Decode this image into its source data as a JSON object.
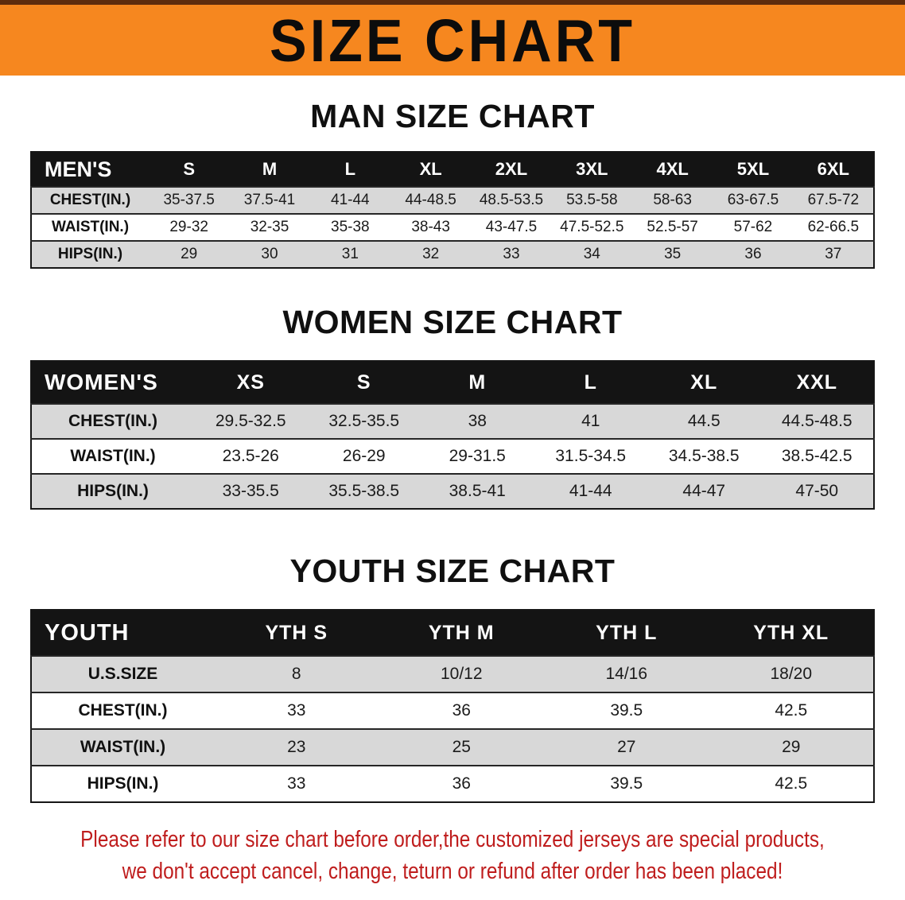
{
  "banner": {
    "title": "SIZE CHART"
  },
  "colors": {
    "banner_bg": "#f6871f",
    "banner_top_line": "#5e2c0d",
    "header_bg": "#141414",
    "header_text": "#ffffff",
    "stripe": "#d8d8d8",
    "footer_text": "#bf1d1d"
  },
  "sections": [
    {
      "heading": "MAN SIZE CHART",
      "table": {
        "header": [
          "MEN'S",
          "S",
          "M",
          "L",
          "XL",
          "2XL",
          "3XL",
          "4XL",
          "5XL",
          "6XL"
        ],
        "rows": [
          {
            "label": "CHEST(IN.)",
            "values": [
              "35-37.5",
              "37.5-41",
              "41-44",
              "44-48.5",
              "48.5-53.5",
              "53.5-58",
              "58-63",
              "63-67.5",
              "67.5-72"
            ]
          },
          {
            "label": "WAIST(IN.)",
            "values": [
              "29-32",
              "32-35",
              "35-38",
              "38-43",
              "43-47.5",
              "47.5-52.5",
              "52.5-57",
              "57-62",
              "62-66.5"
            ]
          },
          {
            "label": "HIPS(IN.)",
            "values": [
              "29",
              "30",
              "31",
              "32",
              "33",
              "34",
              "35",
              "36",
              "37"
            ]
          }
        ]
      }
    },
    {
      "heading": "WOMEN SIZE CHART",
      "table": {
        "header": [
          "WOMEN'S",
          "XS",
          "S",
          "M",
          "L",
          "XL",
          "XXL"
        ],
        "rows": [
          {
            "label": "CHEST(IN.)",
            "values": [
              "29.5-32.5",
              "32.5-35.5",
              "38",
              "41",
              "44.5",
              "44.5-48.5"
            ]
          },
          {
            "label": "WAIST(IN.)",
            "values": [
              "23.5-26",
              "26-29",
              "29-31.5",
              "31.5-34.5",
              "34.5-38.5",
              "38.5-42.5"
            ]
          },
          {
            "label": "HIPS(IN.)",
            "values": [
              "33-35.5",
              "35.5-38.5",
              "38.5-41",
              "41-44",
              "44-47",
              "47-50"
            ]
          }
        ]
      }
    },
    {
      "heading": "YOUTH SIZE CHART",
      "table": {
        "header": [
          "YOUTH",
          "YTH S",
          "YTH M",
          "YTH L",
          "YTH XL"
        ],
        "rows": [
          {
            "label": "U.S.SIZE",
            "values": [
              "8",
              "10/12",
              "14/16",
              "18/20"
            ]
          },
          {
            "label": "CHEST(IN.)",
            "values": [
              "33",
              "36",
              "39.5",
              "42.5"
            ]
          },
          {
            "label": "WAIST(IN.)",
            "values": [
              "23",
              "25",
              "27",
              "29"
            ]
          },
          {
            "label": "HIPS(IN.)",
            "values": [
              "33",
              "36",
              "39.5",
              "42.5"
            ]
          }
        ]
      }
    }
  ],
  "footer": {
    "line1": "Please refer to our size chart before order,the customized jerseys are special products,",
    "line2": "we don't accept cancel, change, teturn or refund after order has been placed!"
  }
}
